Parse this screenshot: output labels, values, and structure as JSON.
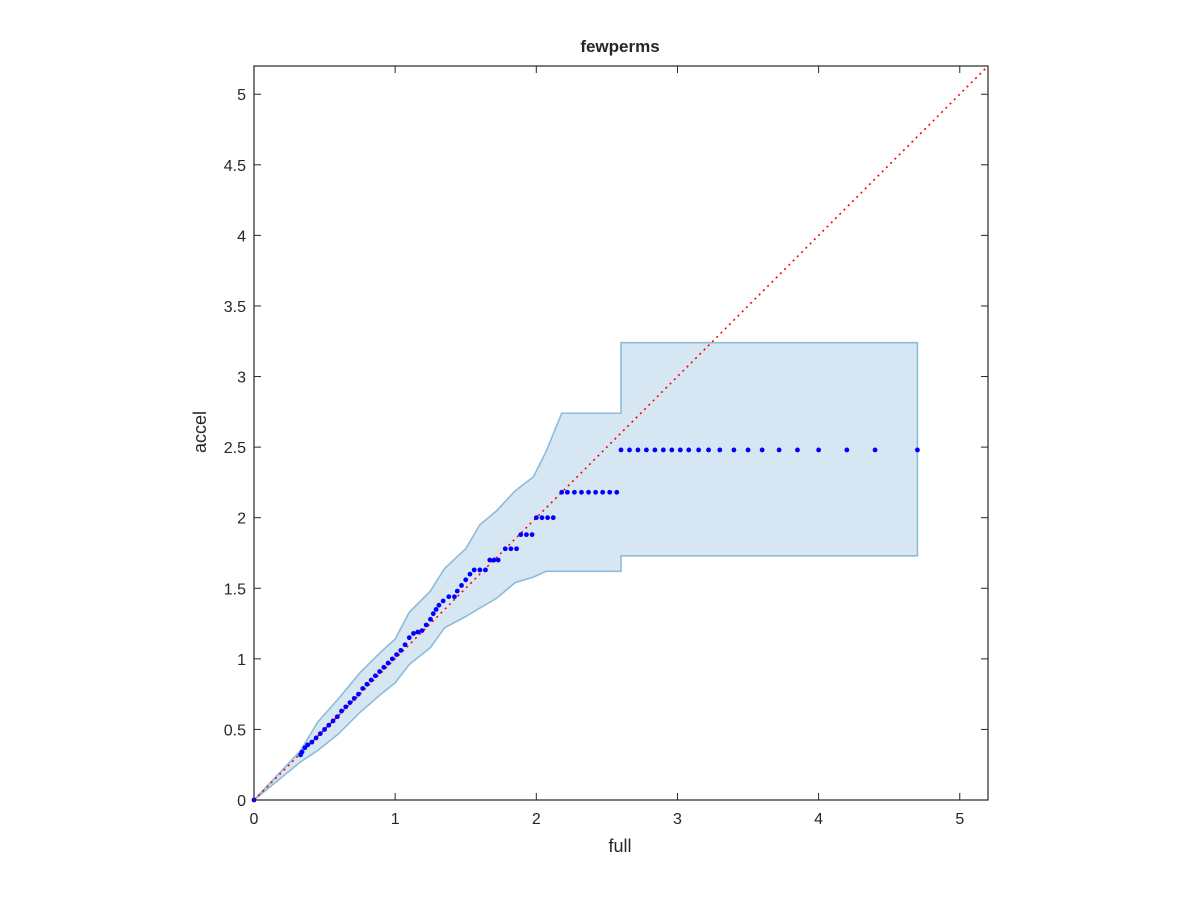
{
  "chart_data": {
    "type": "scatter",
    "title": "fewperms",
    "xlabel": "full",
    "ylabel": "accel",
    "xlim": [
      0,
      5.2
    ],
    "ylim": [
      0,
      5.2
    ],
    "xticks": [
      0,
      1,
      2,
      3,
      4,
      5
    ],
    "yticks": [
      0,
      0.5,
      1,
      1.5,
      2,
      2.5,
      3,
      3.5,
      4,
      4.5,
      5
    ],
    "xtick_labels": [
      "0",
      "1",
      "2",
      "3",
      "4",
      "5"
    ],
    "ytick_labels": [
      "0",
      "0.5",
      "1",
      "1.5",
      "2",
      "2.5",
      "3",
      "3.5",
      "4",
      "4.5",
      "5"
    ],
    "grid": false,
    "colors": {
      "points": "#0000ff",
      "band_fill": "#d6e7f3",
      "band_edge": "#8dbbd9",
      "reference": "#ff0000",
      "axes": "#262626"
    },
    "reference_line": {
      "x": [
        0,
        5.2
      ],
      "y": [
        0,
        5.2
      ],
      "style": "dotted"
    },
    "confidence_band": {
      "x": [
        0,
        0.33,
        0.45,
        0.6,
        0.75,
        0.9,
        1.0,
        1.1,
        1.25,
        1.35,
        1.5,
        1.6,
        1.72,
        1.85,
        1.98,
        2.07,
        2.18,
        2.6,
        2.6,
        4.7
      ],
      "upper": [
        0,
        0.35,
        0.55,
        0.72,
        0.9,
        1.05,
        1.14,
        1.33,
        1.48,
        1.64,
        1.78,
        1.95,
        2.05,
        2.19,
        2.29,
        2.47,
        2.74,
        2.74,
        3.24,
        3.24
      ],
      "lower": [
        0,
        0.27,
        0.35,
        0.47,
        0.62,
        0.75,
        0.83,
        0.96,
        1.08,
        1.22,
        1.3,
        1.36,
        1.43,
        1.54,
        1.58,
        1.62,
        1.62,
        1.62,
        1.73,
        1.73
      ]
    },
    "series": [
      {
        "points": [
          {
            "x": 0.0,
            "y": 0.0
          },
          {
            "x": 0.33,
            "y": 0.32
          },
          {
            "x": 0.34,
            "y": 0.34
          },
          {
            "x": 0.36,
            "y": 0.37
          },
          {
            "x": 0.38,
            "y": 0.39
          },
          {
            "x": 0.41,
            "y": 0.41
          },
          {
            "x": 0.44,
            "y": 0.44
          },
          {
            "x": 0.47,
            "y": 0.47
          },
          {
            "x": 0.5,
            "y": 0.5
          },
          {
            "x": 0.53,
            "y": 0.53
          },
          {
            "x": 0.56,
            "y": 0.56
          },
          {
            "x": 0.59,
            "y": 0.59
          },
          {
            "x": 0.62,
            "y": 0.63
          },
          {
            "x": 0.65,
            "y": 0.66
          },
          {
            "x": 0.68,
            "y": 0.69
          },
          {
            "x": 0.71,
            "y": 0.72
          },
          {
            "x": 0.74,
            "y": 0.75
          },
          {
            "x": 0.77,
            "y": 0.79
          },
          {
            "x": 0.8,
            "y": 0.82
          },
          {
            "x": 0.83,
            "y": 0.85
          },
          {
            "x": 0.86,
            "y": 0.88
          },
          {
            "x": 0.89,
            "y": 0.91
          },
          {
            "x": 0.92,
            "y": 0.94
          },
          {
            "x": 0.95,
            "y": 0.97
          },
          {
            "x": 0.98,
            "y": 1.0
          },
          {
            "x": 1.01,
            "y": 1.03
          },
          {
            "x": 1.04,
            "y": 1.06
          },
          {
            "x": 1.07,
            "y": 1.1
          },
          {
            "x": 1.1,
            "y": 1.15
          },
          {
            "x": 1.13,
            "y": 1.18
          },
          {
            "x": 1.16,
            "y": 1.19
          },
          {
            "x": 1.19,
            "y": 1.2
          },
          {
            "x": 1.22,
            "y": 1.24
          },
          {
            "x": 1.25,
            "y": 1.28
          },
          {
            "x": 1.27,
            "y": 1.32
          },
          {
            "x": 1.29,
            "y": 1.35
          },
          {
            "x": 1.31,
            "y": 1.38
          },
          {
            "x": 1.34,
            "y": 1.41
          },
          {
            "x": 1.38,
            "y": 1.44
          },
          {
            "x": 1.42,
            "y": 1.44
          },
          {
            "x": 1.44,
            "y": 1.48
          },
          {
            "x": 1.47,
            "y": 1.52
          },
          {
            "x": 1.5,
            "y": 1.56
          },
          {
            "x": 1.53,
            "y": 1.6
          },
          {
            "x": 1.56,
            "y": 1.63
          },
          {
            "x": 1.6,
            "y": 1.63
          },
          {
            "x": 1.64,
            "y": 1.63
          },
          {
            "x": 1.67,
            "y": 1.7
          },
          {
            "x": 1.7,
            "y": 1.7
          },
          {
            "x": 1.73,
            "y": 1.7
          },
          {
            "x": 1.78,
            "y": 1.78
          },
          {
            "x": 1.82,
            "y": 1.78
          },
          {
            "x": 1.86,
            "y": 1.78
          },
          {
            "x": 1.89,
            "y": 1.88
          },
          {
            "x": 1.93,
            "y": 1.88
          },
          {
            "x": 1.97,
            "y": 1.88
          },
          {
            "x": 2.0,
            "y": 2.0
          },
          {
            "x": 2.04,
            "y": 2.0
          },
          {
            "x": 2.08,
            "y": 2.0
          },
          {
            "x": 2.12,
            "y": 2.0
          },
          {
            "x": 2.18,
            "y": 2.18
          },
          {
            "x": 2.22,
            "y": 2.18
          },
          {
            "x": 2.27,
            "y": 2.18
          },
          {
            "x": 2.32,
            "y": 2.18
          },
          {
            "x": 2.37,
            "y": 2.18
          },
          {
            "x": 2.42,
            "y": 2.18
          },
          {
            "x": 2.47,
            "y": 2.18
          },
          {
            "x": 2.52,
            "y": 2.18
          },
          {
            "x": 2.57,
            "y": 2.18
          },
          {
            "x": 2.6,
            "y": 2.48
          },
          {
            "x": 2.66,
            "y": 2.48
          },
          {
            "x": 2.72,
            "y": 2.48
          },
          {
            "x": 2.78,
            "y": 2.48
          },
          {
            "x": 2.84,
            "y": 2.48
          },
          {
            "x": 2.9,
            "y": 2.48
          },
          {
            "x": 2.96,
            "y": 2.48
          },
          {
            "x": 3.02,
            "y": 2.48
          },
          {
            "x": 3.08,
            "y": 2.48
          },
          {
            "x": 3.15,
            "y": 2.48
          },
          {
            "x": 3.22,
            "y": 2.48
          },
          {
            "x": 3.3,
            "y": 2.48
          },
          {
            "x": 3.4,
            "y": 2.48
          },
          {
            "x": 3.5,
            "y": 2.48
          },
          {
            "x": 3.6,
            "y": 2.48
          },
          {
            "x": 3.72,
            "y": 2.48
          },
          {
            "x": 3.85,
            "y": 2.48
          },
          {
            "x": 4.0,
            "y": 2.48
          },
          {
            "x": 4.2,
            "y": 2.48
          },
          {
            "x": 4.4,
            "y": 2.48
          },
          {
            "x": 4.7,
            "y": 2.48
          }
        ]
      }
    ]
  }
}
